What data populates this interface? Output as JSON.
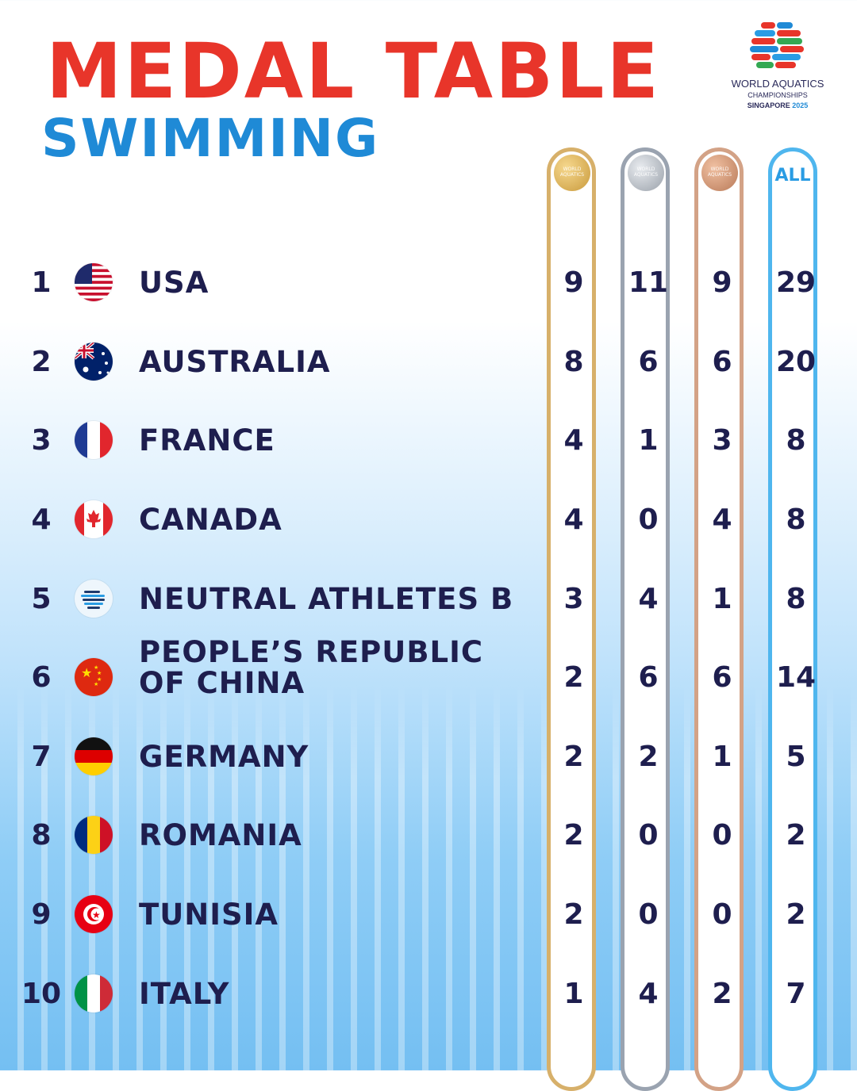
{
  "header": {
    "title": "MEDAL TABLE",
    "subtitle": "SWIMMING",
    "logo": {
      "line1": "WORLD AQUATICS",
      "line2": "CHAMPIONSHIPS",
      "line3a": "SINGAPORE",
      "line3b": "2025"
    }
  },
  "columns": {
    "gold_medal_text": "WORLD AQUATICS",
    "silver_medal_text": "WORLD AQUATICS",
    "bronze_medal_text": "WORLD AQUATICS",
    "all_label": "ALL"
  },
  "colors": {
    "title": "#e8352a",
    "subtitle": "#1f8ad6",
    "text": "#1e1e4e",
    "gold": "#d7b06a",
    "silver": "#9aa3b0",
    "bronze": "#d3a286",
    "all": "#4fb6ee"
  },
  "rows": [
    {
      "rank": "1",
      "country": "USA",
      "flag": "usa-flag-icon",
      "gold": "9",
      "silver": "11",
      "bronze": "9",
      "total": "29"
    },
    {
      "rank": "2",
      "country": "AUSTRALIA",
      "flag": "australia-flag-icon",
      "gold": "8",
      "silver": "6",
      "bronze": "6",
      "total": "20"
    },
    {
      "rank": "3",
      "country": "FRANCE",
      "flag": "france-flag-icon",
      "gold": "4",
      "silver": "1",
      "bronze": "3",
      "total": "8"
    },
    {
      "rank": "4",
      "country": "CANADA",
      "flag": "canada-flag-icon",
      "gold": "4",
      "silver": "0",
      "bronze": "4",
      "total": "8"
    },
    {
      "rank": "5",
      "country": "NEUTRAL ATHLETES B",
      "flag": "neutral-athletes-flag-icon",
      "gold": "3",
      "silver": "4",
      "bronze": "1",
      "total": "8"
    },
    {
      "rank": "6",
      "country_line1": "PEOPLE’S REPUBLIC",
      "country_line2": "OF CHINA",
      "flag": "china-flag-icon",
      "gold": "2",
      "silver": "6",
      "bronze": "6",
      "total": "14"
    },
    {
      "rank": "7",
      "country": "GERMANY",
      "flag": "germany-flag-icon",
      "gold": "2",
      "silver": "2",
      "bronze": "1",
      "total": "5"
    },
    {
      "rank": "8",
      "country": "ROMANIA",
      "flag": "romania-flag-icon",
      "gold": "2",
      "silver": "0",
      "bronze": "0",
      "total": "2"
    },
    {
      "rank": "9",
      "country": "TUNISIA",
      "flag": "tunisia-flag-icon",
      "gold": "2",
      "silver": "0",
      "bronze": "0",
      "total": "2"
    },
    {
      "rank": "10",
      "country": "ITALY",
      "flag": "italy-flag-icon",
      "gold": "1",
      "silver": "4",
      "bronze": "2",
      "total": "7"
    }
  ]
}
